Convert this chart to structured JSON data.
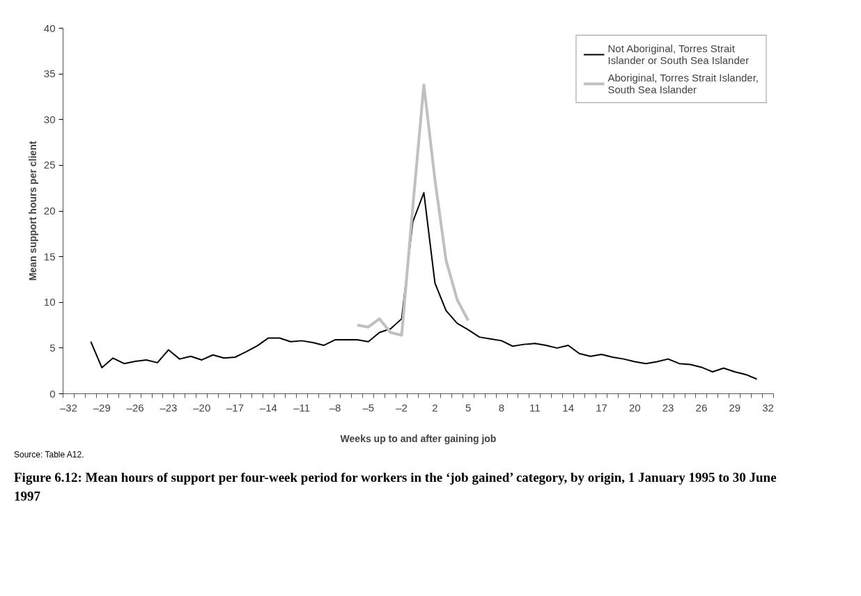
{
  "chart_data": {
    "type": "line",
    "title": "Figure 6.12: Mean hours of support per four-week period for workers in the ‘job gained’ category, by origin, 1 January 1995 to 30 June 1997",
    "xlabel": "Weeks up to and after gaining job",
    "ylabel": "Mean support hours per client",
    "annotations": [
      "Source: Table A12."
    ],
    "categories": [
      "–32",
      null,
      null,
      "–29",
      null,
      null,
      "–26",
      null,
      null,
      "–23",
      null,
      null,
      "–20",
      null,
      null,
      "–17",
      null,
      null,
      "–14",
      null,
      null,
      "–11",
      null,
      null,
      "–8",
      null,
      null,
      "–5",
      null,
      null,
      "–2",
      null,
      null,
      "2",
      null,
      null,
      "5",
      null,
      null,
      "8",
      null,
      null,
      "11",
      null,
      null,
      "14",
      null,
      null,
      "17",
      null,
      null,
      "20",
      null,
      null,
      "23",
      null,
      null,
      "26",
      null,
      null,
      "29",
      null,
      null,
      "32"
    ],
    "series": [
      {
        "name": "Not Aboriginal, Torres Strait Islander or South Sea Islander",
        "color": "#000000",
        "values": [
          null,
          null,
          5.7,
          2.85,
          3.9,
          3.3,
          3.55,
          3.7,
          3.4,
          4.8,
          3.8,
          4.1,
          3.7,
          4.25,
          3.9,
          4.0,
          4.6,
          5.25,
          6.1,
          6.1,
          5.7,
          5.8,
          5.6,
          5.3,
          5.9,
          5.9,
          5.9,
          5.7,
          6.7,
          7.1,
          8.2,
          18.8,
          22.0,
          12.1,
          9.1,
          7.7,
          7.0,
          6.2,
          6.0,
          5.8,
          5.2,
          5.4,
          5.5,
          5.3,
          5.0,
          5.3,
          4.4,
          4.1,
          4.3,
          4.0,
          3.8,
          3.5,
          3.3,
          3.5,
          3.8,
          3.3,
          3.2,
          2.9,
          2.4,
          2.8,
          2.4,
          2.1,
          1.6,
          null
        ]
      },
      {
        "name": "Aboriginal, Torres Strait Islander, South Sea Islander",
        "color": "#c0c0c0",
        "values": [
          null,
          null,
          null,
          null,
          null,
          null,
          null,
          null,
          null,
          null,
          null,
          null,
          null,
          null,
          null,
          null,
          null,
          null,
          null,
          null,
          null,
          null,
          null,
          null,
          null,
          null,
          7.5,
          7.3,
          8.2,
          6.7,
          6.4,
          20.4,
          33.8,
          23.4,
          14.6,
          10.3,
          8.0,
          null,
          null,
          null,
          null,
          null,
          null,
          null,
          null,
          null,
          null,
          null,
          null,
          null,
          null,
          null,
          null,
          null,
          null,
          null,
          null,
          null,
          null,
          null,
          null,
          null,
          null,
          null
        ]
      }
    ],
    "ylim": [
      0,
      40
    ],
    "yticks": [
      0,
      5,
      10,
      15,
      20,
      25,
      30,
      35,
      40
    ],
    "grid": false,
    "legend": "top right",
    "marker": "none",
    "line_style": "solid"
  }
}
